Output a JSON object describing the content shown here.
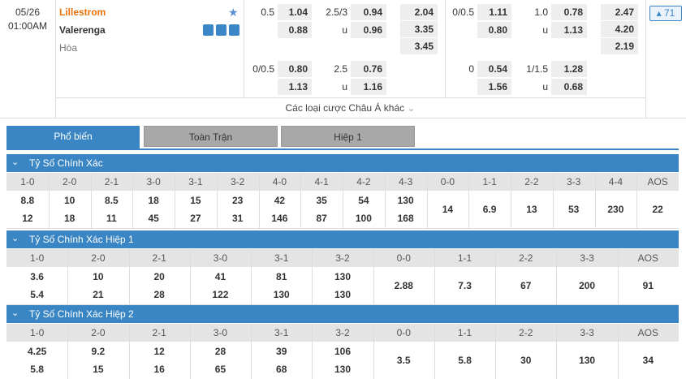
{
  "match": {
    "date": "05/26",
    "time": "01:00AM",
    "home": "Lillestrom",
    "away": "Valerenga",
    "draw": "Hòa",
    "more_count": "71"
  },
  "odds": {
    "full_time": [
      {
        "handicap": "0.5",
        "home": "1.04",
        "away": "0.88",
        "total": "2.5/3",
        "over": "0.94",
        "under_label": "u",
        "under": "0.96",
        "x12": [
          "2.04",
          "3.35",
          "3.45"
        ]
      },
      {
        "handicap": "0/0.5",
        "home": "0.80",
        "away": "1.13",
        "total": "2.5",
        "over": "0.76",
        "under_label": "u",
        "under": "1.16"
      }
    ],
    "first_half": [
      {
        "handicap": "0/0.5",
        "home": "1.11",
        "away": "0.80",
        "total": "1.0",
        "over": "0.78",
        "under_label": "u",
        "under": "1.13",
        "x12": [
          "2.47",
          "4.20",
          "2.19"
        ]
      },
      {
        "handicap": "0",
        "home": "0.54",
        "away": "1.56",
        "total": "1/1.5",
        "over": "1.28",
        "under_label": "u",
        "under": "0.68"
      }
    ]
  },
  "more_bets": "Các loại cược Châu Á khác",
  "tabs": [
    "Phổ biến",
    "Toàn Trận",
    "Hiệp 1"
  ],
  "sections": [
    {
      "title": "Tỷ Số Chính Xác",
      "columns": [
        {
          "score": "1-0",
          "home": "8.8",
          "away": "12"
        },
        {
          "score": "2-0",
          "home": "10",
          "away": "18"
        },
        {
          "score": "2-1",
          "home": "8.5",
          "away": "11"
        },
        {
          "score": "3-0",
          "home": "18",
          "away": "45"
        },
        {
          "score": "3-1",
          "home": "15",
          "away": "27"
        },
        {
          "score": "3-2",
          "home": "23",
          "away": "31"
        },
        {
          "score": "4-0",
          "home": "42",
          "away": "146"
        },
        {
          "score": "4-1",
          "home": "35",
          "away": "87"
        },
        {
          "score": "4-2",
          "home": "54",
          "away": "100"
        },
        {
          "score": "4-3",
          "home": "130",
          "away": "168"
        },
        {
          "score": "0-0",
          "draw": "14"
        },
        {
          "score": "1-1",
          "draw": "6.9"
        },
        {
          "score": "2-2",
          "draw": "13"
        },
        {
          "score": "3-3",
          "draw": "53"
        },
        {
          "score": "4-4",
          "draw": "230"
        },
        {
          "score": "AOS",
          "draw": "22"
        }
      ]
    },
    {
      "title": "Tỷ Số Chính Xác Hiệp 1",
      "columns": [
        {
          "score": "1-0",
          "home": "3.6",
          "away": "5.4"
        },
        {
          "score": "2-0",
          "home": "10",
          "away": "21"
        },
        {
          "score": "2-1",
          "home": "20",
          "away": "28"
        },
        {
          "score": "3-0",
          "home": "41",
          "away": "122"
        },
        {
          "score": "3-1",
          "home": "81",
          "away": "130"
        },
        {
          "score": "3-2",
          "home": "130",
          "away": "130"
        },
        {
          "score": "0-0",
          "draw": "2.88"
        },
        {
          "score": "1-1",
          "draw": "7.3"
        },
        {
          "score": "2-2",
          "draw": "67"
        },
        {
          "score": "3-3",
          "draw": "200"
        },
        {
          "score": "AOS",
          "draw": "91"
        }
      ]
    },
    {
      "title": "Tỷ Số Chính Xác Hiệp 2",
      "columns": [
        {
          "score": "1-0",
          "home": "4.25",
          "away": "5.8"
        },
        {
          "score": "2-0",
          "home": "9.2",
          "away": "15"
        },
        {
          "score": "2-1",
          "home": "12",
          "away": "16"
        },
        {
          "score": "3-0",
          "home": "28",
          "away": "65"
        },
        {
          "score": "3-1",
          "home": "39",
          "away": "68"
        },
        {
          "score": "3-2",
          "home": "106",
          "away": "130"
        },
        {
          "score": "0-0",
          "draw": "3.5"
        },
        {
          "score": "1-1",
          "draw": "5.8"
        },
        {
          "score": "2-2",
          "draw": "30"
        },
        {
          "score": "3-3",
          "draw": "130"
        },
        {
          "score": "AOS",
          "draw": "34"
        }
      ]
    }
  ]
}
